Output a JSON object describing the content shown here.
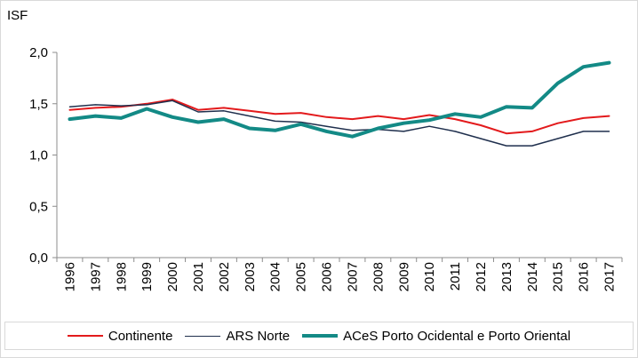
{
  "chart_data": {
    "type": "line",
    "ylabel": "ISF",
    "ylim": [
      0,
      2
    ],
    "yticks": [
      "0,0",
      "0,5",
      "1,0",
      "1,5",
      "2,0"
    ],
    "ytick_values": [
      0,
      0.5,
      1,
      1.5,
      2
    ],
    "categories": [
      "1996",
      "1997",
      "1998",
      "1999",
      "2000",
      "2001",
      "2002",
      "2003",
      "2004",
      "2005",
      "2006",
      "2007",
      "2008",
      "2009",
      "2010",
      "2011",
      "2012",
      "2013",
      "2014",
      "2015",
      "2016",
      "2017"
    ],
    "grid": false,
    "legend_position": "bottom",
    "series": [
      {
        "name": "Continente",
        "color": "#e31a1c",
        "values": [
          1.44,
          1.46,
          1.47,
          1.5,
          1.54,
          1.44,
          1.46,
          1.43,
          1.4,
          1.41,
          1.37,
          1.35,
          1.38,
          1.35,
          1.39,
          1.35,
          1.29,
          1.21,
          1.23,
          1.31,
          1.36,
          1.38
        ]
      },
      {
        "name": "ARS Norte",
        "color": "#1f2f4d",
        "values": [
          1.47,
          1.49,
          1.48,
          1.49,
          1.53,
          1.42,
          1.43,
          1.38,
          1.33,
          1.32,
          1.28,
          1.24,
          1.25,
          1.23,
          1.28,
          1.23,
          1.16,
          1.09,
          1.09,
          1.16,
          1.23,
          1.23
        ]
      },
      {
        "name": "ACeS Porto Ocidental e Porto Oriental",
        "color": "#138a86",
        "values": [
          1.35,
          1.38,
          1.36,
          1.45,
          1.37,
          1.32,
          1.35,
          1.26,
          1.24,
          1.3,
          1.23,
          1.18,
          1.26,
          1.31,
          1.34,
          1.4,
          1.37,
          1.47,
          1.46,
          1.7,
          1.86,
          1.9
        ]
      }
    ]
  }
}
